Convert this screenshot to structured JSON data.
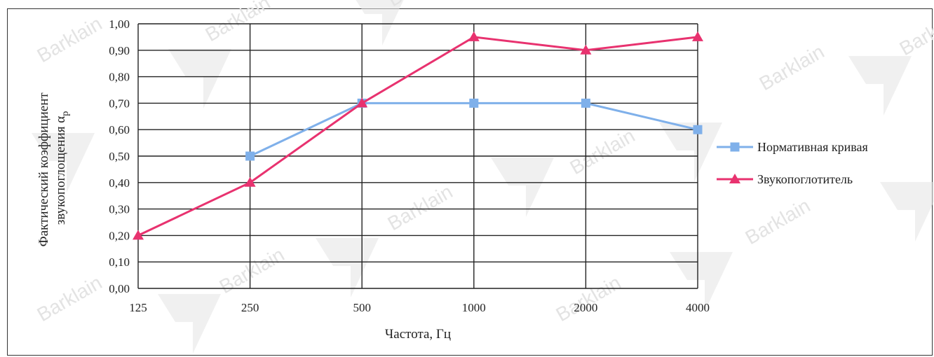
{
  "chart_data": {
    "type": "line",
    "x": [
      "125",
      "250",
      "500",
      "1000",
      "2000",
      "4000"
    ],
    "xlabel": "Частота, Гц",
    "ylabel": "Фактический коэффициент звукопоглощения α",
    "ylabel_subscript": "p",
    "ylim": [
      0,
      1
    ],
    "y_ticks": [
      "0,00",
      "0,10",
      "0,20",
      "0,30",
      "0,40",
      "0,50",
      "0,60",
      "0,70",
      "0,80",
      "0,90",
      "1,00"
    ],
    "grid": true,
    "legend_position": "right",
    "series": [
      {
        "name": "Нормативная кривая",
        "values": [
          null,
          0.5,
          0.7,
          0.7,
          0.7,
          0.6
        ],
        "color": "#7fb0ea",
        "marker": "square"
      },
      {
        "name": "Звукопоглотитель",
        "values": [
          0.2,
          0.4,
          0.7,
          0.95,
          0.9,
          0.95
        ],
        "color": "#e8326f",
        "marker": "triangle"
      }
    ]
  },
  "watermark": {
    "text": "Barklain",
    "color": "#e3e3e3"
  }
}
